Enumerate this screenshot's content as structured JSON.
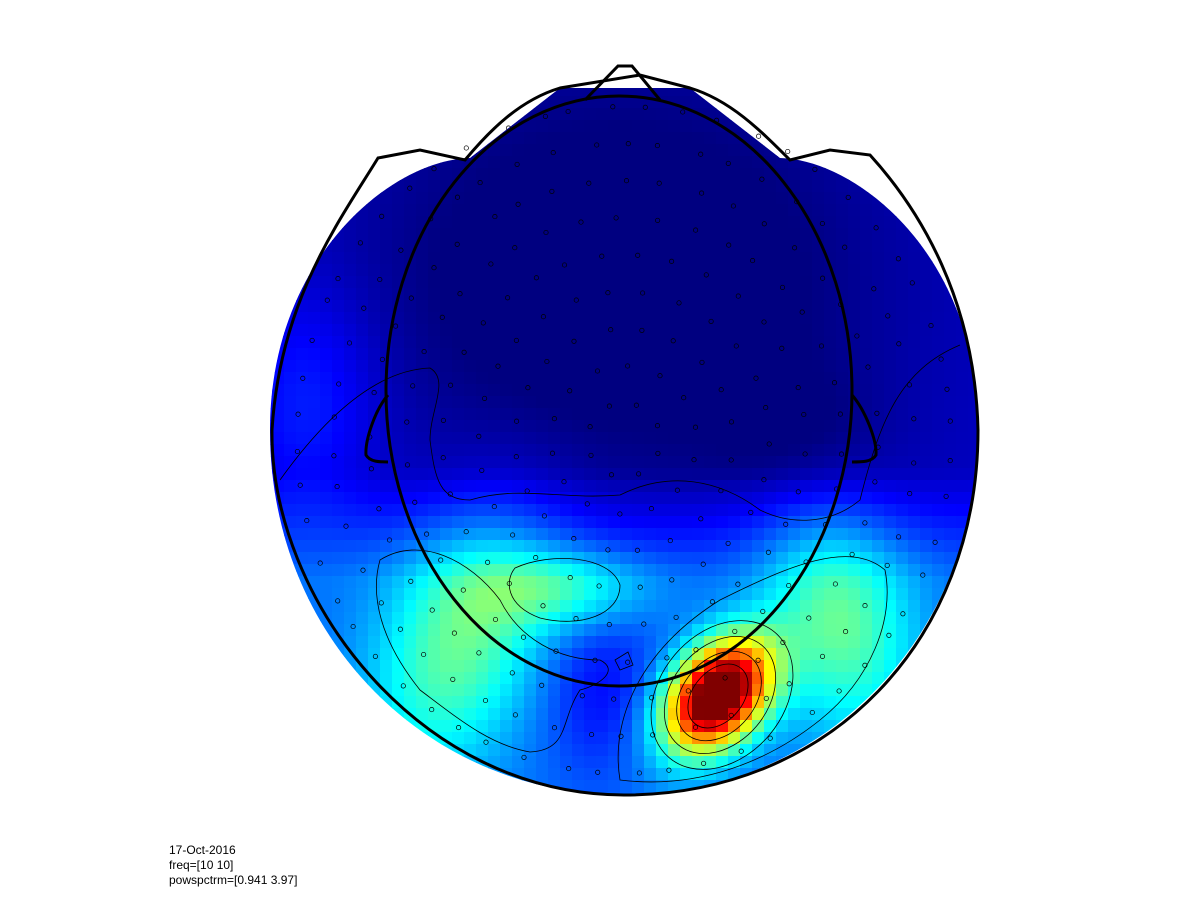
{
  "chart_data": {
    "type": "heatmap",
    "subtype": "topoplot",
    "colormap": "jet",
    "zlim": [
      0.941,
      3.97
    ],
    "grid": false,
    "peak": {
      "value": 3.97,
      "location": "right-posterior"
    }
  },
  "caption": {
    "date": "17-Oct-2016",
    "freq": "freq=[10 10]",
    "powspctrm": "powspctrm=[0.941 3.97]"
  },
  "colors": {
    "outline": "#000000",
    "background": "#ffffff"
  }
}
